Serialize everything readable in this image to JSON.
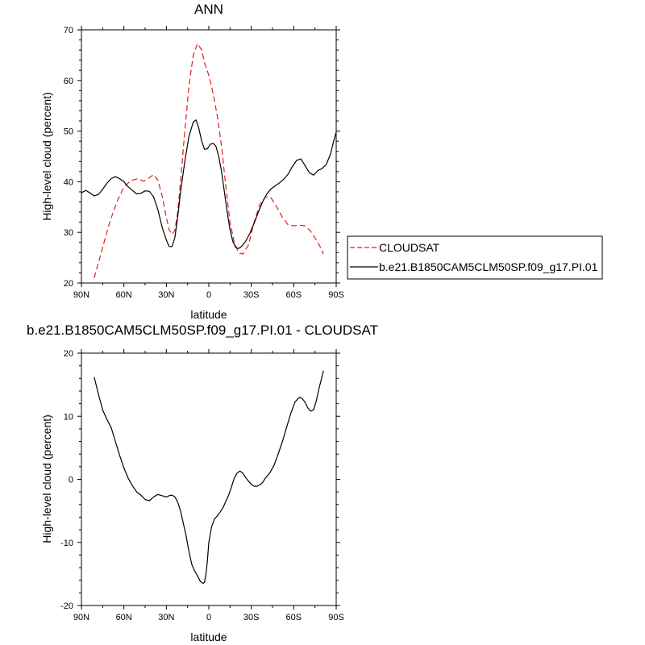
{
  "chart_data": [
    {
      "type": "line",
      "title": "ANN",
      "xlabel": "latitude",
      "ylabel": "High-level cloud (percent)",
      "xlim": [
        90,
        -90
      ],
      "ylim": [
        20,
        70
      ],
      "xticks": [
        90,
        60,
        30,
        0,
        -30,
        -60,
        -90
      ],
      "xtick_labels": [
        "90N",
        "60N",
        "30N",
        "0",
        "30S",
        "60S",
        "90S"
      ],
      "yticks": [
        20,
        30,
        40,
        50,
        60,
        70
      ],
      "ytick_labels": [
        "20",
        "30",
        "40",
        "50",
        "60",
        "70"
      ],
      "legend_position": "right",
      "series": [
        {
          "name": "CLOUDSAT",
          "color": "#e41a1c",
          "dash": "dashed",
          "x": [
            81,
            75,
            70,
            65,
            60,
            55,
            50,
            46,
            42,
            39,
            36,
            33,
            30,
            28,
            26,
            24,
            22,
            20,
            17,
            14,
            11,
            8,
            5,
            3,
            0,
            -3,
            -6,
            -9,
            -12,
            -15,
            -18,
            -21,
            -24,
            -28,
            -32,
            -36,
            -40,
            -44,
            -48,
            -52,
            -56,
            -60,
            -64,
            -68,
            -72,
            -76,
            -79,
            -81
          ],
          "y": [
            21,
            27,
            32,
            36,
            39,
            40.2,
            40.6,
            40.1,
            40.8,
            41.4,
            40.3,
            37.2,
            33,
            30.5,
            29.6,
            30.4,
            34,
            40,
            50,
            59,
            65,
            67.3,
            66,
            63.5,
            61,
            57.5,
            53,
            47,
            39,
            32,
            28,
            26,
            25.7,
            27.5,
            32,
            35.5,
            37,
            36.8,
            35,
            33,
            31.5,
            31.3,
            31.4,
            31.3,
            30.2,
            28.5,
            27,
            25.7
          ]
        },
        {
          "name": "b.e21.B1850CAM5CLM50SP.f09_g17.PI.01",
          "color": "#000000",
          "dash": "solid",
          "x": [
            90,
            87,
            84,
            81,
            78,
            75,
            72,
            69,
            66,
            63,
            60,
            57,
            54,
            51,
            48,
            45,
            42,
            39,
            36,
            33,
            30,
            28,
            26,
            24,
            22,
            20,
            17,
            14,
            11,
            9,
            7,
            5,
            3,
            1,
            -1,
            -3,
            -5,
            -7,
            -9,
            -11,
            -13,
            -15,
            -17,
            -19,
            -21,
            -23,
            -26,
            -29,
            -32,
            -35,
            -38,
            -41,
            -44,
            -47,
            -50,
            -53,
            -56,
            -59,
            -62,
            -65,
            -68,
            -71,
            -74,
            -77,
            -80,
            -83,
            -86,
            -88,
            -90
          ],
          "y": [
            37.8,
            38.3,
            37.8,
            37.2,
            37.5,
            38.5,
            39.7,
            40.6,
            41,
            40.6,
            40,
            39,
            38.3,
            37.6,
            37.7,
            38.2,
            38.1,
            37,
            34.5,
            31,
            28.5,
            27.2,
            27.2,
            29,
            33,
            38,
            44,
            49,
            51.8,
            52.2,
            50.5,
            48,
            46.4,
            46.5,
            47.4,
            47.6,
            47,
            45,
            42,
            38,
            34,
            30.5,
            28.2,
            27,
            26.8,
            27.2,
            28.2,
            29.8,
            31.8,
            34,
            36,
            37.6,
            38.6,
            39.2,
            39.8,
            40.5,
            41.5,
            43,
            44.2,
            44.5,
            43.2,
            41.8,
            41.3,
            42.2,
            42.6,
            43.4,
            45.5,
            47.8,
            49.8
          ]
        }
      ]
    },
    {
      "type": "line",
      "title": "b.e21.B1850CAM5CLM50SP.f09_g17.PI.01 - CLOUDSAT",
      "xlabel": "latitude",
      "ylabel": "High-level cloud (percent)",
      "xlim": [
        90,
        -90
      ],
      "ylim": [
        -20,
        20
      ],
      "xticks": [
        90,
        60,
        30,
        0,
        -30,
        -60,
        -90
      ],
      "xtick_labels": [
        "90N",
        "60N",
        "30N",
        "0",
        "30S",
        "60S",
        "90S"
      ],
      "yticks": [
        -20,
        -10,
        0,
        10,
        20
      ],
      "ytick_labels": [
        "-20",
        "-10",
        "0",
        "10",
        "20"
      ],
      "series": [
        {
          "color": "#000000",
          "dash": "solid",
          "x": [
            81,
            78,
            75,
            72,
            69,
            66,
            63,
            60,
            57,
            54,
            51,
            48,
            45,
            42,
            39,
            36,
            33,
            30,
            28,
            26,
            24,
            22,
            20,
            18,
            16,
            14,
            12,
            10,
            8,
            6,
            4,
            3,
            2,
            1,
            0,
            -2,
            -4,
            -6,
            -8,
            -10,
            -12,
            -14,
            -16,
            -18,
            -20,
            -22,
            -24,
            -26,
            -28,
            -30,
            -32,
            -34,
            -36,
            -38,
            -40,
            -43,
            -46,
            -49,
            -52,
            -55,
            -58,
            -61,
            -64,
            -66,
            -68,
            -70,
            -72,
            -74,
            -76,
            -78,
            -80,
            -81
          ],
          "y": [
            16.2,
            13.5,
            11,
            9.5,
            8.2,
            6,
            3.8,
            1.8,
            0.2,
            -1,
            -2,
            -2.5,
            -3.2,
            -3.4,
            -2.8,
            -2.4,
            -2.6,
            -2.8,
            -2.6,
            -2.5,
            -2.8,
            -3.6,
            -5,
            -7,
            -9,
            -11.5,
            -13.5,
            -14.5,
            -15.3,
            -16.2,
            -16.5,
            -16.3,
            -15,
            -13,
            -10,
            -7.5,
            -6.3,
            -5.8,
            -5.2,
            -4.5,
            -3.5,
            -2.5,
            -1.2,
            0.2,
            1,
            1.3,
            1,
            0.3,
            -0.3,
            -0.8,
            -1.1,
            -1.1,
            -0.9,
            -0.5,
            0.2,
            1,
            2.2,
            4,
            6,
            8.3,
            10.5,
            12.3,
            13,
            12.8,
            12.2,
            11.3,
            10.8,
            11,
            12.5,
            14.5,
            16.3,
            17.2
          ]
        }
      ]
    }
  ]
}
